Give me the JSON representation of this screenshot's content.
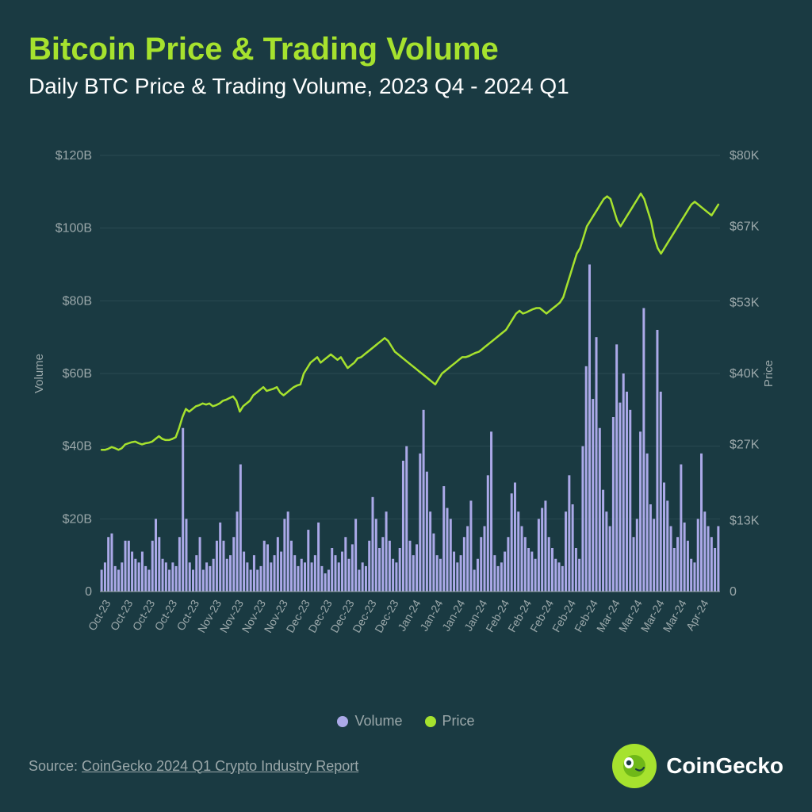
{
  "background_color": "#1a3a42",
  "title": {
    "text": "Bitcoin Price & Trading Volume",
    "color": "#a6e22e",
    "fontsize": 40,
    "fontweight": 700
  },
  "subtitle": {
    "text": "Daily BTC Price & Trading Volume, 2023 Q4 - 2024 Q1",
    "color": "#ffffff",
    "fontsize": 28,
    "fontweight": 500
  },
  "chart": {
    "type": "combo-bar-line",
    "volume_axis": {
      "label": "Volume",
      "label_color": "#9ba8aa",
      "label_fontsize": 15,
      "min": 0,
      "max": 120,
      "unit_prefix": "$",
      "unit_suffix": "B",
      "ticks": [
        0,
        20,
        40,
        60,
        80,
        100,
        120
      ],
      "tick_labels": [
        "0",
        "$20B",
        "$40B",
        "$60B",
        "$80B",
        "$100B",
        "$120B"
      ],
      "tick_color": "#9ba8aa",
      "tick_fontsize": 16,
      "grid_color": "#2a4a52",
      "grid_width": 1
    },
    "price_axis": {
      "label": "Price",
      "label_color": "#9ba8aa",
      "label_fontsize": 15,
      "min": 0,
      "max": 80,
      "unit_prefix": "$",
      "unit_suffix": "K",
      "ticks": [
        0,
        13,
        27,
        40,
        53,
        67,
        80
      ],
      "tick_labels": [
        "0",
        "$13K",
        "$27K",
        "$40K",
        "$53K",
        "$67K",
        "$80K"
      ],
      "tick_color": "#9ba8aa",
      "tick_fontsize": 16
    },
    "x_axis": {
      "labels": [
        "Oct-23",
        "Oct-23",
        "Oct-23",
        "Oct-23",
        "Oct-23",
        "Nov-23",
        "Nov-23",
        "Nov-23",
        "Nov-23",
        "Dec-23",
        "Dec-23",
        "Dec-23",
        "Dec-23",
        "Dec-23",
        "Jan-24",
        "Jan-24",
        "Jan-24",
        "Jan-24",
        "Feb-24",
        "Feb-24",
        "Feb-24",
        "Feb-24",
        "Feb-24",
        "Mar-24",
        "Mar-24",
        "Mar-24",
        "Mar-24",
        "Apr-24"
      ],
      "label_color": "#9ba8aa",
      "label_fontsize": 14,
      "rotation": -60
    },
    "volume_series": {
      "color": "#aba9e8",
      "bar_gap": 0.7,
      "values": [
        6,
        8,
        15,
        16,
        7,
        6,
        8,
        14,
        14,
        11,
        9,
        8,
        11,
        7,
        6,
        14,
        20,
        15,
        9,
        8,
        6,
        8,
        7,
        15,
        45,
        20,
        8,
        6,
        10,
        15,
        6,
        8,
        7,
        9,
        14,
        19,
        14,
        9,
        10,
        15,
        22,
        35,
        11,
        8,
        6,
        10,
        6,
        7,
        14,
        13,
        8,
        10,
        15,
        11,
        20,
        22,
        14,
        10,
        7,
        9,
        8,
        17,
        8,
        10,
        19,
        7,
        5,
        6,
        12,
        10,
        8,
        11,
        15,
        9,
        13,
        20,
        6,
        8,
        7,
        14,
        26,
        20,
        12,
        15,
        22,
        14,
        9,
        8,
        12,
        36,
        40,
        14,
        10,
        13,
        38,
        50,
        33,
        22,
        16,
        10,
        9,
        29,
        23,
        20,
        11,
        8,
        10,
        15,
        18,
        25,
        6,
        9,
        15,
        18,
        32,
        44,
        10,
        7,
        8,
        11,
        15,
        27,
        30,
        22,
        18,
        15,
        12,
        11,
        9,
        20,
        23,
        25,
        15,
        12,
        9,
        8,
        7,
        22,
        32,
        24,
        12,
        9,
        40,
        62,
        90,
        53,
        70,
        45,
        28,
        22,
        18,
        48,
        68,
        52,
        60,
        55,
        50,
        15,
        20,
        44,
        78,
        38,
        24,
        20,
        72,
        55,
        30,
        25,
        18,
        12,
        15,
        35,
        19,
        14,
        9,
        8,
        20,
        38,
        22,
        18,
        15,
        12,
        18
      ]
    },
    "price_series": {
      "color": "#a6e22e",
      "line_width": 2.5,
      "values": [
        26,
        26,
        26.2,
        26.5,
        26.3,
        26,
        26.3,
        27,
        27.2,
        27.4,
        27.5,
        27.2,
        27,
        27.2,
        27.3,
        27.5,
        28,
        28.5,
        28,
        27.8,
        27.8,
        28,
        28.3,
        30,
        32,
        33.5,
        33,
        33.5,
        34,
        34.2,
        34.5,
        34.3,
        34.5,
        34,
        34.2,
        34.5,
        35,
        35.2,
        35.5,
        35.8,
        35,
        33,
        34,
        34.5,
        35,
        36,
        36.5,
        37,
        37.5,
        36.8,
        37,
        37.2,
        37.5,
        36.5,
        36,
        36.5,
        37,
        37.5,
        37.8,
        38,
        40,
        41,
        42,
        42.5,
        43,
        42,
        42.5,
        43,
        43.5,
        43,
        42.5,
        43,
        42,
        41,
        41.5,
        42,
        42.8,
        43,
        43.5,
        44,
        44.5,
        45,
        45.5,
        46,
        46.5,
        46,
        45,
        44,
        43.5,
        43,
        42.5,
        42,
        41.5,
        41,
        40.5,
        40,
        39.5,
        39,
        38.5,
        38,
        39,
        40,
        40.5,
        41,
        41.5,
        42,
        42.5,
        43,
        43,
        43.2,
        43.5,
        43.8,
        44,
        44.5,
        45,
        45.5,
        46,
        46.5,
        47,
        47.5,
        48,
        49,
        50,
        51,
        51.5,
        51,
        51.2,
        51.5,
        51.8,
        52,
        52,
        51.5,
        51,
        51.5,
        52,
        52.5,
        53,
        54,
        56,
        58,
        60,
        62,
        63,
        65,
        67,
        68,
        69,
        70,
        71,
        72,
        72.5,
        72,
        70,
        68,
        67,
        68,
        69,
        70,
        71,
        72,
        73,
        72,
        70,
        68,
        65,
        63,
        62,
        63,
        64,
        65,
        66,
        67,
        68,
        69,
        70,
        71,
        71.5,
        71,
        70.5,
        70,
        69.5,
        69,
        70,
        71
      ]
    }
  },
  "legend": {
    "items": [
      {
        "label": "Volume",
        "color": "#aba9e8"
      },
      {
        "label": "Price",
        "color": "#a6e22e"
      }
    ],
    "text_color": "#9ba8aa"
  },
  "source": {
    "prefix": "Source: ",
    "link_text": "CoinGecko 2024 Q1 Crypto Industry Report",
    "color": "#9ba8aa"
  },
  "brand": {
    "name": "CoinGecko",
    "logo_bg": "#a6e22e",
    "logo_accent": "#1a3a42",
    "text_color": "#ffffff"
  }
}
